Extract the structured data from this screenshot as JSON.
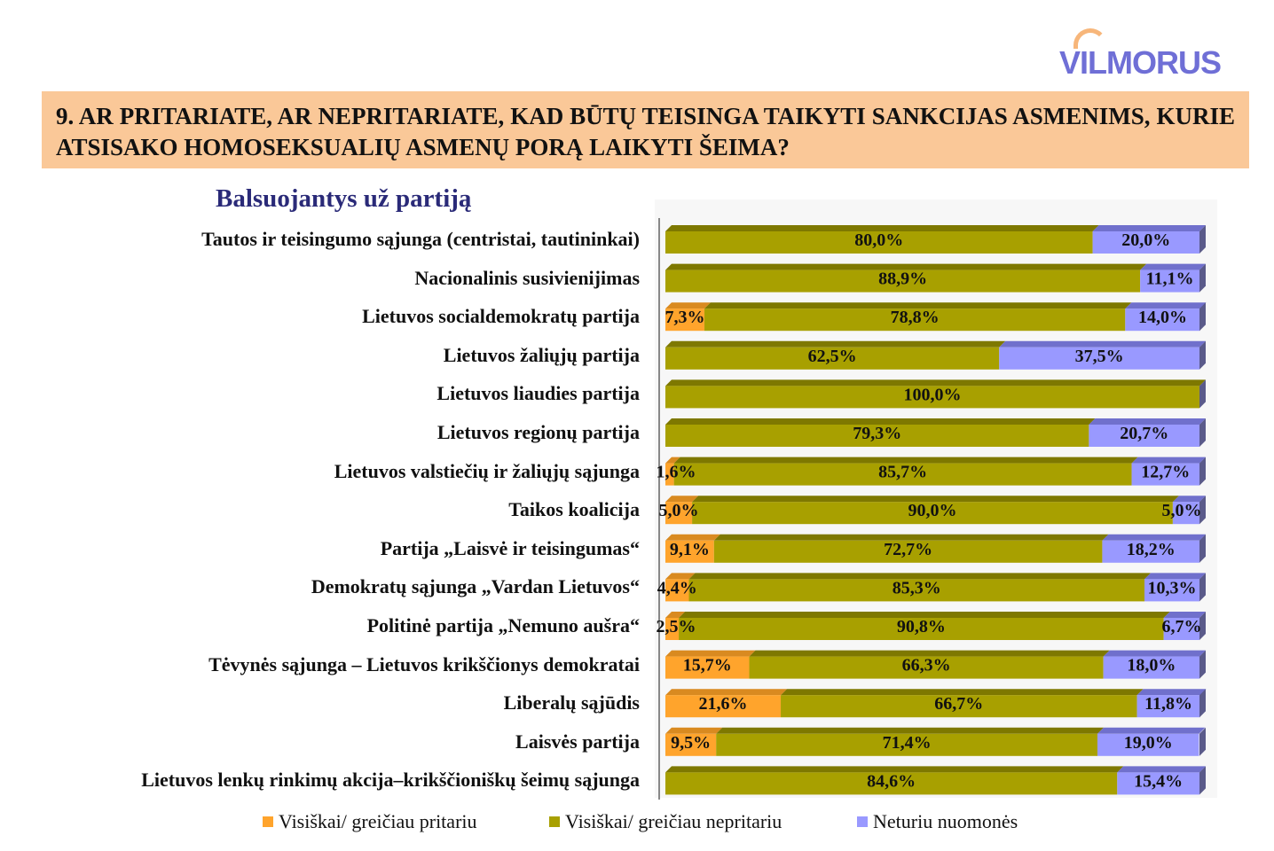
{
  "logo": {
    "text": "VILMORUS"
  },
  "question": "9. AR PRITARIATE, AR NEPRITARIATE, KAD BŪTŲ TEISINGA TAIKYTI SANKCIJAS ASMENIMS, KURIE ATSISAKO HOMOSEKSUALIŲ ASMENŲ PORĄ LAIKYTI ŠEIMA?",
  "chart_data": {
    "type": "bar",
    "stacked": true,
    "orientation": "horizontal",
    "title": "Balsuojantys už partiją",
    "categories": [
      "Tautos ir teisingumo sąjunga (centristai, tautininkai)",
      "Nacionalinis susivienijimas",
      "Lietuvos socialdemokratų partija",
      "Lietuvos žaliųjų partija",
      "Lietuvos liaudies partija",
      "Lietuvos regionų partija",
      "Lietuvos valstiečių ir žaliųjų sąjunga",
      "Taikos koalicija",
      "Partija „Laisvė ir teisingumas“",
      "Demokratų sąjunga „Vardan Lietuvos“",
      "Politinė partija „Nemuno aušra“",
      "Tėvynės sąjunga – Lietuvos krikščionys demokratai",
      "Liberalų sąjūdis",
      "Laisvės partija",
      "Lietuvos lenkų rinkimų akcija–krikščioniškų šeimų sąjunga"
    ],
    "series": [
      {
        "name": "Visiškai/ greičiau pritariu",
        "color": "#ffa42c",
        "values": [
          0,
          0,
          7.3,
          0,
          0,
          0,
          1.6,
          5.0,
          9.1,
          4.4,
          2.5,
          15.7,
          21.6,
          9.5,
          0
        ]
      },
      {
        "name": "Visiškai/ greičiau nepritariu",
        "color": "#a8a000",
        "values": [
          80.0,
          88.9,
          78.8,
          62.5,
          100.0,
          79.3,
          85.7,
          90.0,
          72.7,
          85.3,
          90.8,
          66.3,
          66.7,
          71.4,
          84.6
        ]
      },
      {
        "name": "Neturiu nuomonės",
        "color": "#9999ff",
        "values": [
          20.0,
          11.1,
          14.0,
          37.5,
          0,
          20.7,
          12.7,
          5.0,
          18.2,
          10.3,
          6.7,
          18.0,
          11.8,
          19.0,
          15.4
        ]
      }
    ],
    "xlim": [
      0,
      100
    ],
    "legend": "bottom",
    "grid": false
  }
}
